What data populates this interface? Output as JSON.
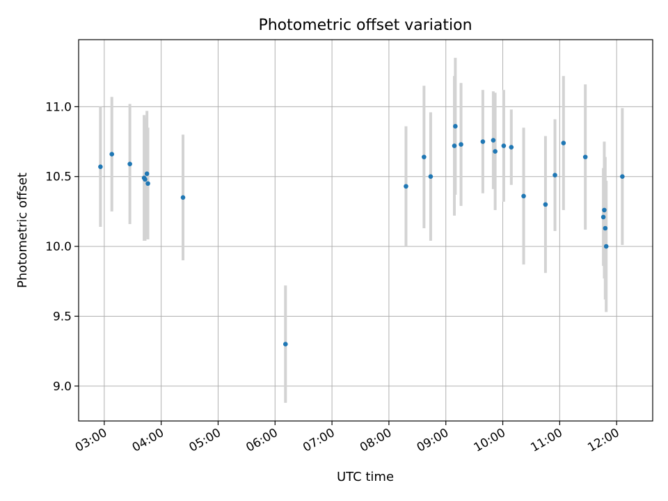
{
  "chart_data": {
    "type": "scatter",
    "title": "Photometric offset variation",
    "xlabel": "UTC time",
    "ylabel": "Photometric offset",
    "x_ticks": [
      "03:00",
      "04:00",
      "05:00",
      "06:00",
      "07:00",
      "08:00",
      "09:00",
      "10:00",
      "11:00",
      "12:00"
    ],
    "y_ticks": [
      "9.0",
      "9.5",
      "10.0",
      "10.5",
      "11.0"
    ],
    "xlim": [
      "02:33",
      "12:38"
    ],
    "ylim": [
      8.75,
      11.48
    ],
    "grid": true,
    "colors": {
      "points": "#1f77b4",
      "errorbars": "#d3d3d3",
      "grid": "#b0b0b0"
    },
    "series": [
      {
        "points": [
          {
            "time": "02:56",
            "y": 10.57,
            "err": 0.43
          },
          {
            "time": "03:08",
            "y": 10.66,
            "err": 0.41
          },
          {
            "time": "03:27",
            "y": 10.59,
            "err": 0.43
          },
          {
            "time": "03:42",
            "y": 10.49,
            "err": 0.45
          },
          {
            "time": "03:43",
            "y": 10.48,
            "err": 0.44
          },
          {
            "time": "03:45",
            "y": 10.52,
            "err": 0.45
          },
          {
            "time": "03:46",
            "y": 10.45,
            "err": 0.4
          },
          {
            "time": "04:23",
            "y": 10.35,
            "err": 0.45
          },
          {
            "time": "06:11",
            "y": 9.3,
            "err": 0.42
          },
          {
            "time": "08:18",
            "y": 10.43,
            "err": 0.43
          },
          {
            "time": "08:37",
            "y": 10.64,
            "err": 0.51
          },
          {
            "time": "08:44",
            "y": 10.5,
            "err": 0.46
          },
          {
            "time": "09:09",
            "y": 10.72,
            "err": 0.5
          },
          {
            "time": "09:10",
            "y": 10.86,
            "err": 0.49
          },
          {
            "time": "09:16",
            "y": 10.73,
            "err": 0.44
          },
          {
            "time": "09:39",
            "y": 10.75,
            "err": 0.37
          },
          {
            "time": "09:50",
            "y": 10.76,
            "err": 0.35
          },
          {
            "time": "09:52",
            "y": 10.68,
            "err": 0.42
          },
          {
            "time": "10:01",
            "y": 10.72,
            "err": 0.4
          },
          {
            "time": "10:09",
            "y": 10.71,
            "err": 0.27
          },
          {
            "time": "10:22",
            "y": 10.36,
            "err": 0.49
          },
          {
            "time": "10:45",
            "y": 10.3,
            "err": 0.49
          },
          {
            "time": "10:55",
            "y": 10.51,
            "err": 0.4
          },
          {
            "time": "11:04",
            "y": 10.74,
            "err": 0.48
          },
          {
            "time": "11:27",
            "y": 10.64,
            "err": 0.52
          },
          {
            "time": "11:46",
            "y": 10.21,
            "err": 0.35
          },
          {
            "time": "11:47",
            "y": 10.26,
            "err": 0.49
          },
          {
            "time": "11:48",
            "y": 10.13,
            "err": 0.51
          },
          {
            "time": "11:49",
            "y": 10.0,
            "err": 0.47
          },
          {
            "time": "12:06",
            "y": 10.5,
            "err": 0.49
          }
        ]
      }
    ]
  }
}
